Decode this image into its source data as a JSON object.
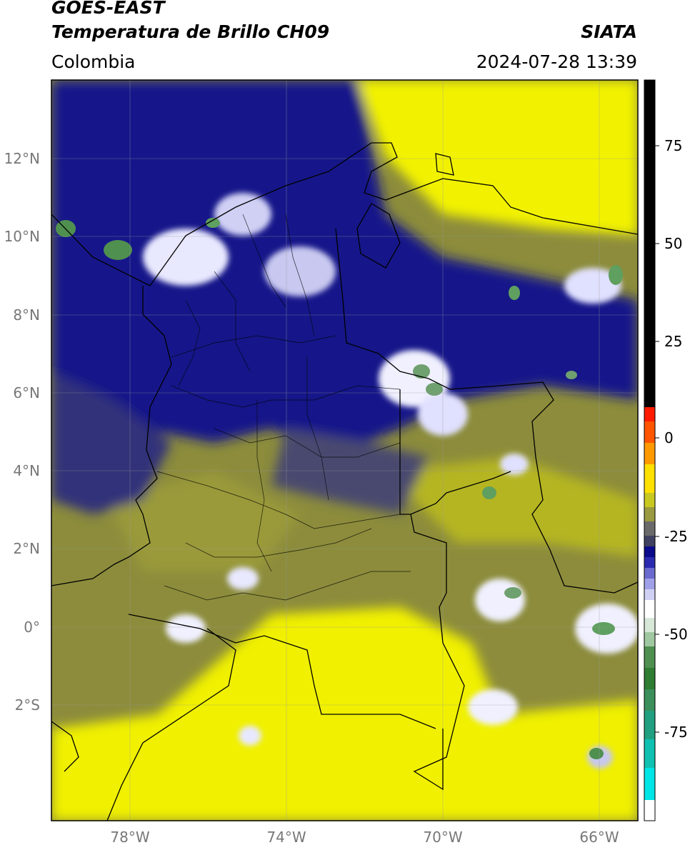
{
  "header": {
    "satellite": "GOES-EAST",
    "product": "Temperatura de Brillo CH09",
    "region": "Colombia",
    "agency": "SIATA",
    "datetime": "2024-07-28 13:39"
  },
  "map": {
    "lon_range": [
      -80,
      -65
    ],
    "lat_range": [
      -5,
      14
    ],
    "lat_ticks": [
      {
        "value": 12,
        "label": "12°N"
      },
      {
        "value": 10,
        "label": "10°N"
      },
      {
        "value": 8,
        "label": "8°N"
      },
      {
        "value": 6,
        "label": "6°N"
      },
      {
        "value": 4,
        "label": "4°N"
      },
      {
        "value": 2,
        "label": "2°N"
      },
      {
        "value": 0,
        "label": "0°"
      },
      {
        "value": -2,
        "label": "2°S"
      }
    ],
    "lon_ticks": [
      {
        "value": -78,
        "label": "78°W"
      },
      {
        "value": -74,
        "label": "74°W"
      },
      {
        "value": -70,
        "label": "70°W"
      },
      {
        "value": -66,
        "label": "66°W"
      }
    ],
    "grid": true
  },
  "colorbar": {
    "range": [
      -95,
      90
    ],
    "ticks": [
      {
        "value": 75,
        "label": "75"
      },
      {
        "value": 50,
        "label": "50"
      },
      {
        "value": 25,
        "label": "25"
      },
      {
        "value": 0,
        "label": "0"
      },
      {
        "value": -25,
        "label": "-25"
      },
      {
        "value": -50,
        "label": "-50"
      },
      {
        "value": -75,
        "label": "-75"
      }
    ],
    "colors": {
      "black": "#000000",
      "red": "#ff1a00",
      "orange": "#ff9900",
      "yellow": "#ffff00",
      "olive": "#8a8a3a",
      "gray": "#5a5a6a",
      "navy": "#0a0a8a",
      "white": "#ffffff",
      "green": "#2e7d32",
      "cyan": "#00e5e5"
    }
  }
}
